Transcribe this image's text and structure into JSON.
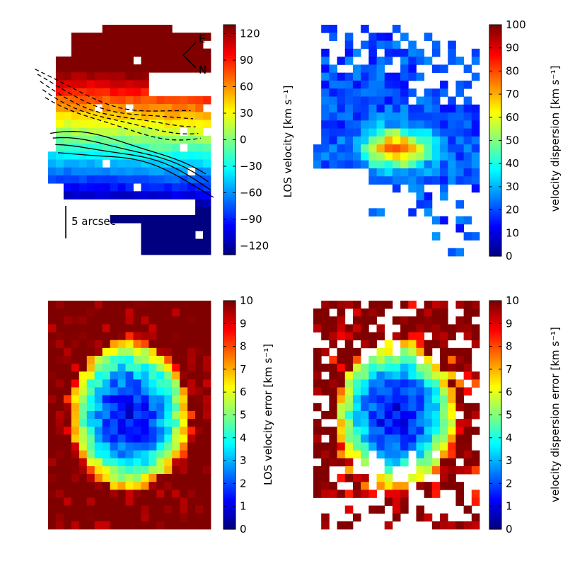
{
  "chart_data": [
    {
      "type": "heatmap",
      "panel": "top-left",
      "colorbar_label": "LOS velocity [km s⁻¹]",
      "colorbar_ticks": [
        "120",
        "90",
        "60",
        "30",
        "0",
        "−30",
        "−60",
        "−90",
        "−120"
      ],
      "colorbar_range": [
        -130,
        130
      ],
      "colormap": "jet",
      "grid": {
        "cols": 21,
        "rows": 29,
        "ref_x": 10,
        "ref_y": 14,
        "amp_x": 12,
        "amp_y": -10,
        "amp_xy": 4
      },
      "overlay": "contours",
      "contours_solid_positive_dashed_negative": true,
      "annotations": {
        "scale_bar": "5 arcsec",
        "compass_east": "E",
        "compass_north": "N"
      }
    },
    {
      "type": "heatmap",
      "panel": "top-right",
      "colorbar_label": "velocity dispersion [km s⁻¹]",
      "colorbar_ticks": [
        "100",
        "90",
        "80",
        "70",
        "60",
        "50",
        "40",
        "30",
        "20",
        "10",
        "0"
      ],
      "colorbar_range": [
        0,
        100
      ],
      "colormap": "jet",
      "grid": {
        "cols": 21,
        "rows": 29,
        "peak": 78,
        "background": 20,
        "peak_center": [
          10,
          15
        ]
      }
    },
    {
      "type": "heatmap",
      "panel": "bottom-left",
      "colorbar_label": "LOS velocity error [km s⁻¹]",
      "colorbar_ticks": [
        "10",
        "9",
        "8",
        "7",
        "6",
        "5",
        "4",
        "3",
        "2",
        "1",
        "0"
      ],
      "colorbar_range": [
        0,
        10
      ],
      "colormap": "jet",
      "grid": {
        "cols": 21,
        "rows": 29,
        "low_error_core": [
          10,
          14
        ],
        "saturated_edge": 10
      }
    },
    {
      "type": "heatmap",
      "panel": "bottom-right",
      "colorbar_label": "velocity dispersion error [km s⁻¹]",
      "colorbar_ticks": [
        "10",
        "9",
        "8",
        "7",
        "6",
        "5",
        "4",
        "3",
        "2",
        "1",
        "0"
      ],
      "colorbar_range": [
        0,
        10
      ],
      "colormap": "jet",
      "grid": {
        "cols": 21,
        "rows": 29,
        "low_error_core": [
          10,
          14
        ],
        "saturated_edge": 10
      }
    }
  ]
}
